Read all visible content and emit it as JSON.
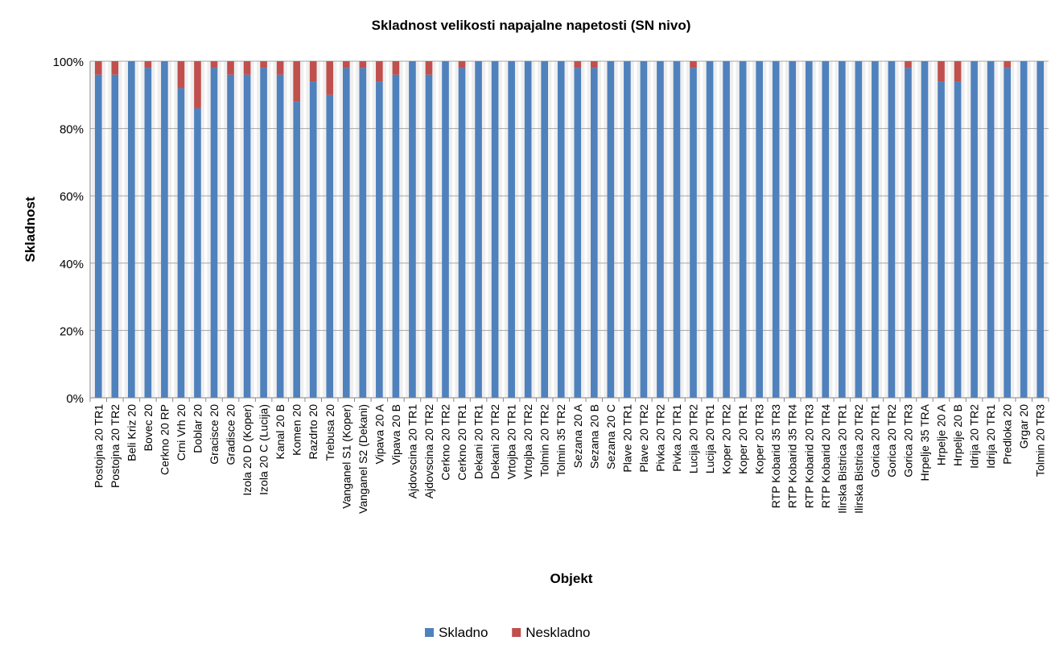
{
  "chart_data": {
    "type": "bar",
    "stacked": true,
    "percent_stacked": true,
    "title": "Skladnost velikosti napajalne napetosti (SN nivo)",
    "xlabel": "Objekt",
    "ylabel": "Skladnost",
    "ylim": [
      0,
      100
    ],
    "yticks": [
      "0%",
      "20%",
      "40%",
      "60%",
      "80%",
      "100%"
    ],
    "grid": true,
    "legend_position": "bottom",
    "categories": [
      "Postojna 20 TR1",
      "Postojna 20 TR2",
      "Beli Kriz 20",
      "Bovec 20",
      "Cerkno 20 RP",
      "Crni Vrh 20",
      "Doblar 20",
      "Gracisce 20",
      "Gradisce 20",
      "Izola 20 D (Koper)",
      "Izola 20 C (Lucija)",
      "Kanal 20 B",
      "Komen 20",
      "Razdrto 20",
      "Trebusa 20",
      "Vanganel S1 (Koper)",
      "Vanganel S2 (Dekani)",
      "Vipava 20 A",
      "Vipava 20 B",
      "Ajdovscina 20 TR1",
      "Ajdovscina 20 TR2",
      "Cerkno 20 TR2",
      "Cerkno 20 TR1",
      "Dekani 20 TR1",
      "Dekani 20 TR2",
      "Vrtojba 20 TR1",
      "Vrtojba 20 TR2",
      "Tolmin 20 TR2",
      "Tolmin 35 TR2",
      "Sezana 20 A",
      "Sezana 20 B",
      "Sezana 20 C",
      "Plave 20 TR1",
      "Plave 20 TR2",
      "Pivka 20 TR2",
      "Pivka 20 TR1",
      "Lucija 20 TR2",
      "Lucija 20 TR1",
      "Koper 20 TR2",
      "Koper 20 TR1",
      "Koper 20 TR3",
      "RTP Kobarid 35 TR3",
      "RTP Kobarid 35 TR4",
      "RTP Kobarid 20 TR3",
      "RTP Kobarid 20 TR4",
      "Ilirska Bistrica 20 TR1",
      "Ilirska Bistrica 20 TR2",
      "Gorica 20 TR1",
      "Gorica 20 TR2",
      "Gorica 20 TR3",
      "Hrpelje 35 TRA",
      "Hrpelje 20 A",
      "Hrpelje 20 B",
      "Idrija 20 TR2",
      "Idrija 20 TR1",
      "Predloka 20",
      "Grgar 20",
      "Tolmin 20 TR3"
    ],
    "series": [
      {
        "name": "Skladno",
        "color": "#4f81bd",
        "values": [
          96,
          96,
          100,
          98,
          100,
          92,
          86,
          98,
          96,
          96,
          98,
          96,
          88,
          94,
          90,
          98,
          98,
          94,
          96,
          100,
          96,
          100,
          98,
          100,
          100,
          100,
          100,
          100,
          100,
          98,
          98,
          100,
          100,
          100,
          100,
          100,
          98,
          100,
          100,
          100,
          100,
          100,
          100,
          100,
          100,
          100,
          100,
          100,
          100,
          98,
          100,
          94,
          94,
          100,
          100,
          98,
          100,
          100
        ]
      },
      {
        "name": "Neskladno",
        "color": "#c0504d",
        "values": [
          4,
          4,
          0,
          2,
          0,
          8,
          14,
          2,
          4,
          4,
          2,
          4,
          12,
          6,
          10,
          2,
          2,
          6,
          4,
          0,
          4,
          0,
          2,
          0,
          0,
          0,
          0,
          0,
          0,
          2,
          2,
          0,
          0,
          0,
          0,
          0,
          2,
          0,
          0,
          0,
          0,
          0,
          0,
          0,
          0,
          0,
          0,
          0,
          0,
          2,
          0,
          6,
          6,
          0,
          0,
          2,
          0,
          0
        ]
      }
    ]
  }
}
